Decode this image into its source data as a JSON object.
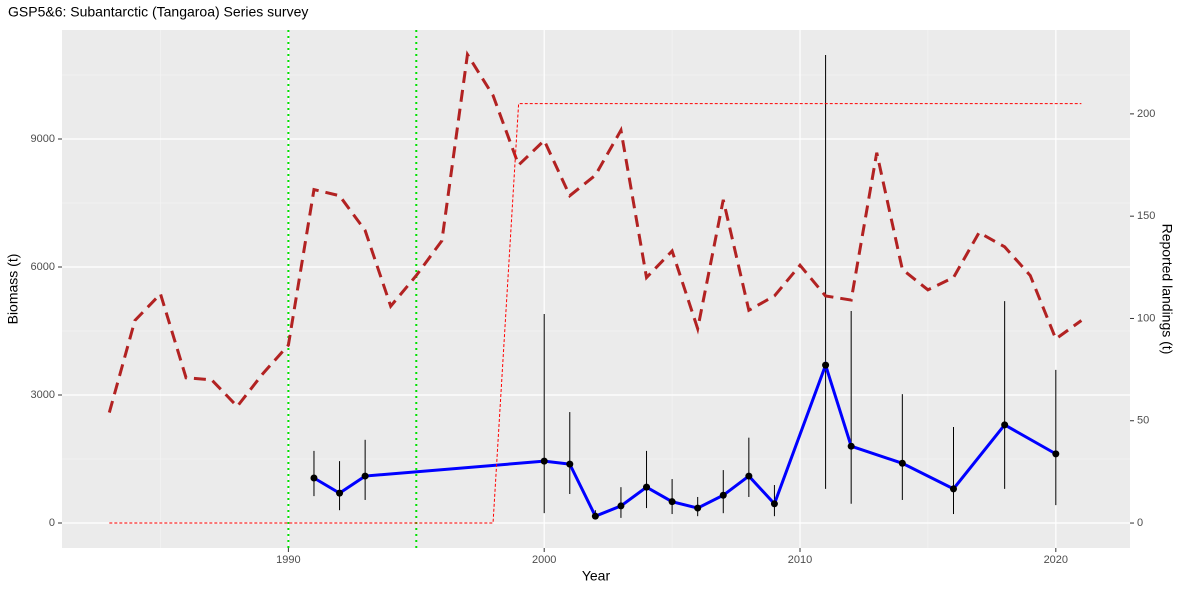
{
  "chart_data": {
    "type": "line",
    "title": "GSP5&6: Subantarctic (Tangaroa) Series survey",
    "x_label": "Year",
    "y_label": "Biomass (t)",
    "y2_label": "Reported landings (t)",
    "xlim": [
      1981.15,
      2022.9
    ],
    "ylim": [
      -586,
      11555
    ],
    "y2lim": [
      -12.2,
      241
    ],
    "xticks": [
      1990,
      2000,
      2010,
      2020
    ],
    "yticks": [
      0,
      3000,
      6000,
      9000
    ],
    "y2ticks": [
      0,
      50,
      100,
      150,
      200
    ],
    "xminorticks": [
      1985,
      1995,
      2005,
      2015
    ],
    "yminorticks": [
      1500,
      4500,
      7500,
      10500
    ],
    "grid": true,
    "vlines": [
      1990,
      1995
    ],
    "vline_color": "#00e000",
    "series": [
      {
        "color": "#0000ff",
        "axis": "y",
        "linestyle": "solid",
        "points": true,
        "x": [
          1991,
          1992,
          1993,
          2000,
          2001,
          2002,
          2003,
          2004,
          2005,
          2006,
          2007,
          2008,
          2009,
          2011,
          2012,
          2014,
          2016,
          2018,
          2020
        ],
        "values": [
          1055,
          700,
          1100,
          1450,
          1380,
          160,
          400,
          840,
          500,
          350,
          650,
          1100,
          450,
          3700,
          1800,
          1400,
          800,
          2300,
          1620
        ],
        "lower": [
          630,
          300,
          540,
          230,
          680,
          90,
          120,
          350,
          210,
          160,
          230,
          610,
          160,
          800,
          450,
          540,
          210,
          800,
          420
        ],
        "upper": [
          1690,
          1450,
          1950,
          4900,
          2600,
          300,
          840,
          1690,
          1030,
          610,
          1240,
          2000,
          890,
          10970,
          4970,
          3020,
          2250,
          5200,
          3590
        ]
      },
      {
        "color": "#b22222",
        "axis": "y2",
        "linestyle": "dashed",
        "x": [
          1983,
          1984,
          1985,
          1986,
          1987,
          1988,
          1989,
          1990,
          1991,
          1992,
          1993,
          1994,
          1995,
          1996,
          1997,
          1998,
          1999,
          2000,
          2001,
          2002,
          2003,
          2004,
          2005,
          2006,
          2007,
          2008,
          2009,
          2010,
          2011,
          2012,
          2013,
          2014,
          2015,
          2016,
          2017,
          2018,
          2019,
          2020,
          2021
        ],
        "values": [
          54,
          99,
          112,
          71,
          70,
          57,
          73,
          87,
          163,
          160,
          143,
          106,
          121,
          138,
          229,
          209,
          175,
          187,
          160,
          170,
          192,
          120,
          133,
          95,
          158,
          104,
          111,
          126,
          111,
          109,
          181,
          124,
          114,
          120,
          142,
          135,
          121,
          90,
          99
        ]
      },
      {
        "color": "#ff0000",
        "axis": "y2",
        "linestyle": "dotted",
        "x": [
          1983,
          1998,
          1999,
          2021
        ],
        "values": [
          0,
          0,
          205,
          205
        ]
      }
    ]
  }
}
